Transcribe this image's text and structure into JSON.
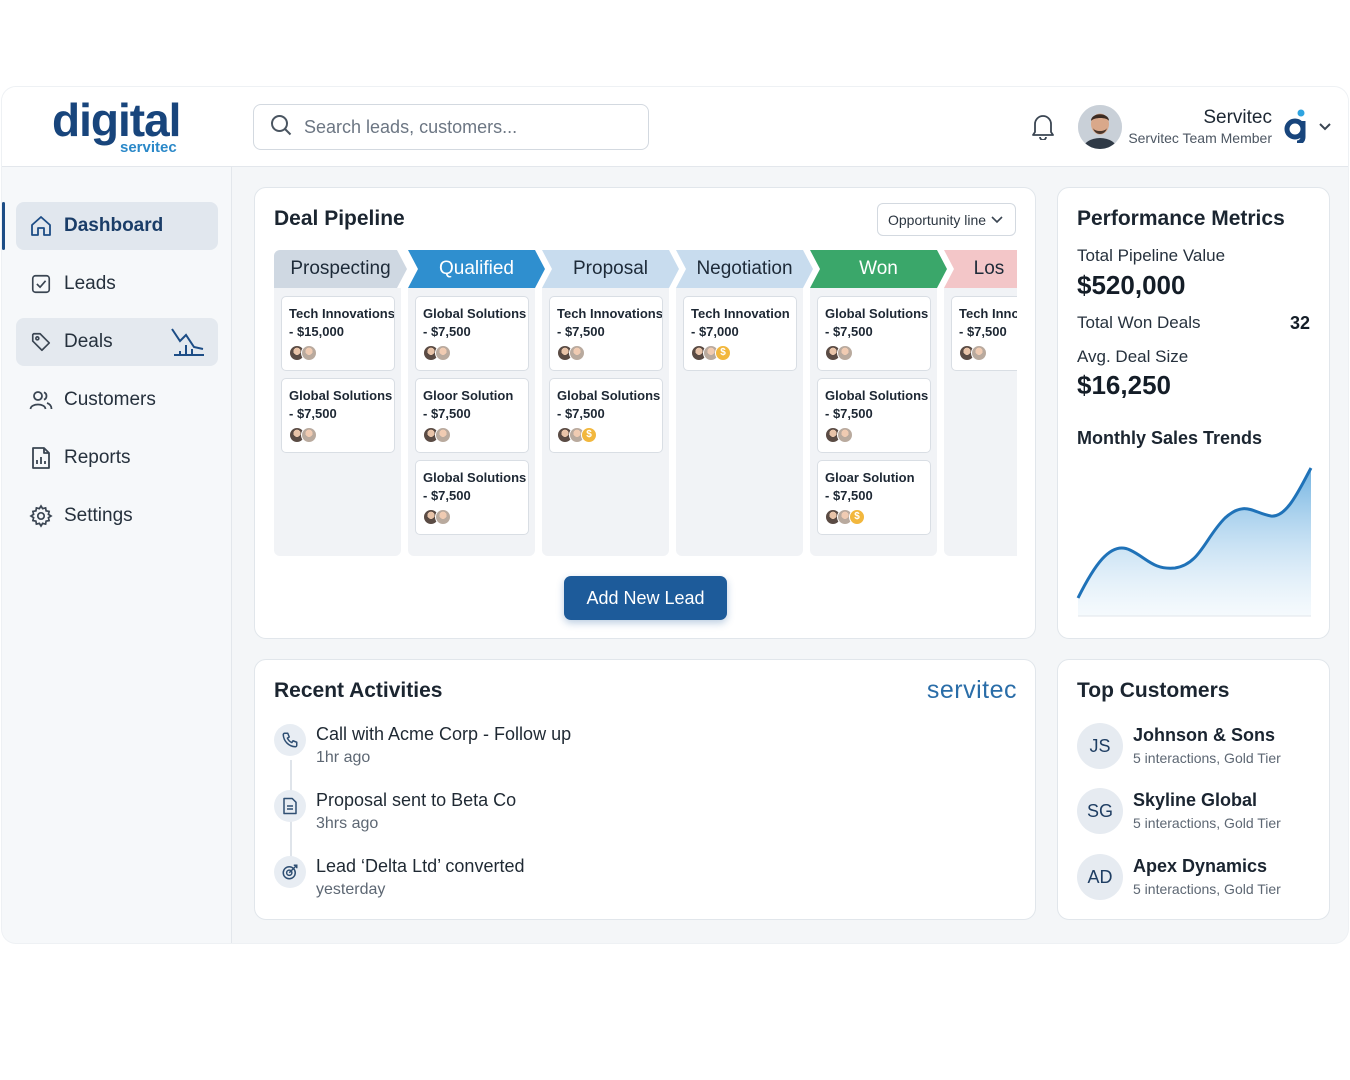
{
  "brand": {
    "logo_text": "digital",
    "logo_sub": "servitec"
  },
  "search": {
    "placeholder": "Search leads, customers..."
  },
  "user": {
    "name": "Servitec",
    "role": "Servitec Team Member"
  },
  "sidebar": {
    "items": [
      {
        "label": "Dashboard",
        "icon": "home-icon",
        "active": true
      },
      {
        "label": "Leads",
        "icon": "checkbox-icon"
      },
      {
        "label": "Deals",
        "icon": "tag-icon"
      },
      {
        "label": "Customers",
        "icon": "users-icon"
      },
      {
        "label": "Reports",
        "icon": "report-icon"
      },
      {
        "label": "Settings",
        "icon": "gear-icon"
      }
    ]
  },
  "pipeline": {
    "title": "Deal Pipeline",
    "filter": "Opportunity line",
    "stages": [
      {
        "label": "Prospecting",
        "color": "#cfd8e2",
        "text": "#1d2a38"
      },
      {
        "label": "Qualified",
        "color": "#2f8fcf",
        "text": "#ffffff"
      },
      {
        "label": "Proposal",
        "color": "#c8dcee",
        "text": "#1d2a38"
      },
      {
        "label": "Negotiation",
        "color": "#c8dcee",
        "text": "#1d2a38"
      },
      {
        "label": "Won",
        "color": "#3aa76a",
        "text": "#ffffff"
      },
      {
        "label": "Los",
        "color": "#f3c6c8",
        "text": "#1d2a38"
      }
    ],
    "columns": [
      [
        {
          "name": "Tech Innovations",
          "amount": "- $15,000",
          "coin": false
        },
        {
          "name": "Global Solutions",
          "amount": "- $7,500",
          "coin": false
        }
      ],
      [
        {
          "name": "Global Solutions",
          "amount": "- $7,500",
          "coin": false
        },
        {
          "name": "Gloor Solution",
          "amount": "- $7,500",
          "coin": false
        },
        {
          "name": "Global Solutions",
          "amount": "- $7,500",
          "coin": false
        }
      ],
      [
        {
          "name": "Tech Innovations",
          "amount": "- $7,500",
          "coin": false
        },
        {
          "name": "Global Solutions",
          "amount": "- $7,500",
          "coin": true
        }
      ],
      [
        {
          "name": "Tech Innovation",
          "amount": "- $7,000",
          "coin": true
        }
      ],
      [
        {
          "name": "Global Solutions",
          "amount": "- $7,500",
          "coin": false
        },
        {
          "name": "Global Solutions",
          "amount": "- $7,500",
          "coin": false
        },
        {
          "name": "Gloar Solution",
          "amount": "- $7,500",
          "coin": true
        }
      ],
      [
        {
          "name": "Tech Innov",
          "amount": "- $7,500",
          "coin": false
        }
      ]
    ],
    "add_button": "Add New Lead"
  },
  "performance": {
    "title": "Performance Metrics",
    "pipeline_label": "Total Pipeline Value",
    "pipeline_value": "$520,000",
    "won_label": "Total Won Deals",
    "won_value": "32",
    "avg_label": "Avg. Deal Size",
    "avg_value": "$16,250",
    "trend_title": "Monthly Sales Trends"
  },
  "activities": {
    "title": "Recent Activities",
    "brand": "servitec",
    "items": [
      {
        "text": "Call with Acme Corp - Follow up",
        "time": "1hr ago",
        "icon": "phone-icon"
      },
      {
        "text": "Proposal sent to Beta Co",
        "time": "3hrs ago",
        "icon": "document-icon"
      },
      {
        "text": "Lead ‘Delta Ltd’ converted",
        "time": "yesterday",
        "icon": "target-icon"
      }
    ]
  },
  "customers": {
    "title": "Top Customers",
    "items": [
      {
        "initials": "JS",
        "name": "Johnson & Sons",
        "meta": "5 interactions, Gold Tier"
      },
      {
        "initials": "SG",
        "name": "Skyline Global",
        "meta": "5 interactions, Gold Tier"
      },
      {
        "initials": "AD",
        "name": "Apex Dynamics",
        "meta": "5 interactions, Gold Tier"
      }
    ]
  }
}
